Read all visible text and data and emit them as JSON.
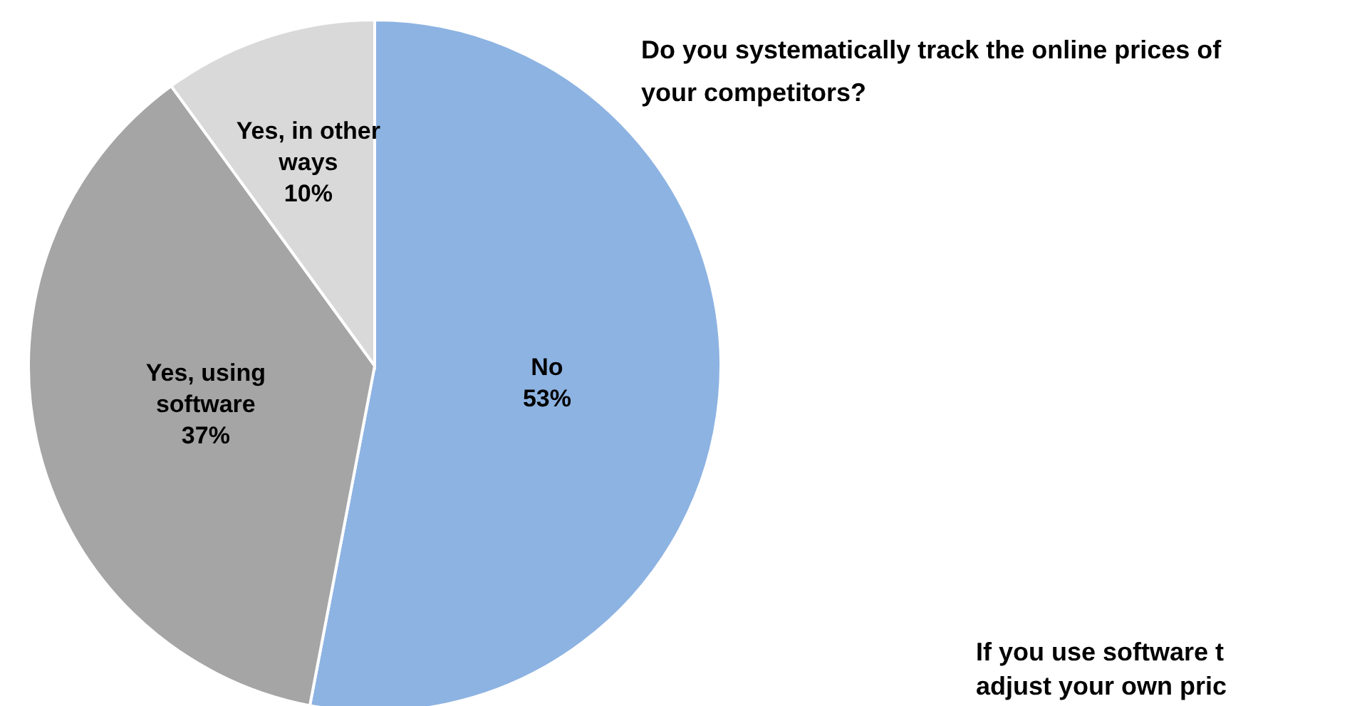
{
  "chart_data": {
    "type": "pie",
    "title": "Do you systematically track the online prices of your competitors?",
    "categories": [
      "No",
      "Yes, using software",
      "Yes, in other ways"
    ],
    "values": [
      53,
      37,
      10
    ],
    "colors": [
      "#8db3e2",
      "#a5a5a5",
      "#d9d9d9"
    ],
    "value_labels": [
      "53%",
      "37%",
      "10%"
    ],
    "annotations": [
      "If you use software t",
      "adjust your own pric"
    ]
  }
}
